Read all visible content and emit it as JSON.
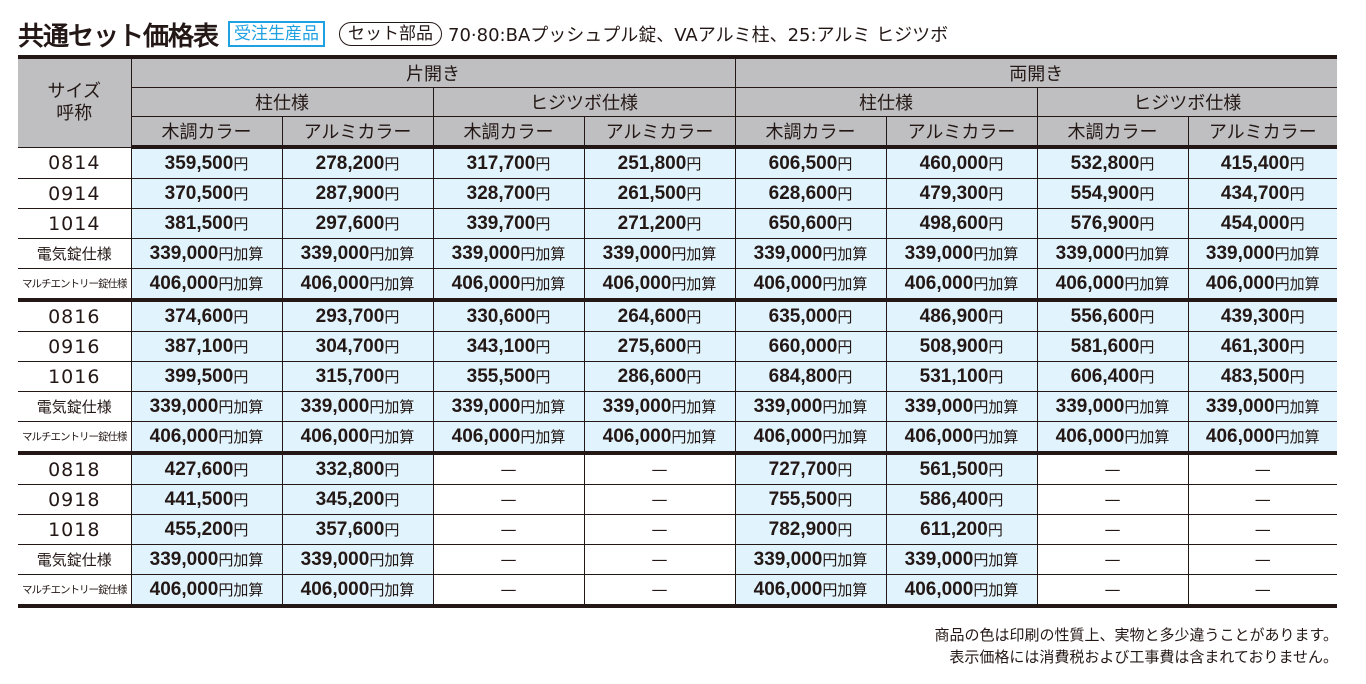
{
  "header": {
    "title": "共通セット価格表",
    "badge": "受注生産品",
    "set_label": "セット部品",
    "description": "70·80:BAプッシュプル錠、VAアルミ柱、25:アルミ ヒジツボ"
  },
  "table": {
    "size_header_line1": "サイズ",
    "size_header_line2": "呼称",
    "groups": [
      {
        "label": "片開き",
        "subgroups": [
          {
            "label": "柱仕様"
          },
          {
            "label": "ヒジツボ仕様"
          }
        ]
      },
      {
        "label": "両開き",
        "subgroups": [
          {
            "label": "柱仕様"
          },
          {
            "label": "ヒジツボ仕様"
          }
        ]
      }
    ],
    "columns": [
      "木調カラー",
      "アルミカラー",
      "木調カラー",
      "アルミカラー",
      "木調カラー",
      "アルミカラー",
      "木調カラー",
      "アルミカラー"
    ],
    "unit": "円",
    "addon_unit": "円加算",
    "dash": "—",
    "rows": [
      {
        "size": "0814",
        "values": [
          "359,500",
          "278,200",
          "317,700",
          "251,800",
          "606,500",
          "460,000",
          "532,800",
          "415,400"
        ]
      },
      {
        "size": "0914",
        "values": [
          "370,500",
          "287,900",
          "328,700",
          "261,500",
          "628,600",
          "479,300",
          "554,900",
          "434,700"
        ]
      },
      {
        "size": "1014",
        "values": [
          "381,500",
          "297,600",
          "339,700",
          "271,200",
          "650,600",
          "498,600",
          "576,900",
          "454,000"
        ]
      },
      {
        "size": "電気錠仕様",
        "addon": true,
        "values": [
          "339,000",
          "339,000",
          "339,000",
          "339,000",
          "339,000",
          "339,000",
          "339,000",
          "339,000"
        ]
      },
      {
        "size": "マルチエントリー錠仕様",
        "addon": true,
        "values": [
          "406,000",
          "406,000",
          "406,000",
          "406,000",
          "406,000",
          "406,000",
          "406,000",
          "406,000"
        ]
      },
      {
        "size": "0816",
        "values": [
          "374,600",
          "293,700",
          "330,600",
          "264,600",
          "635,000",
          "486,900",
          "556,600",
          "439,300"
        ]
      },
      {
        "size": "0916",
        "values": [
          "387,100",
          "304,700",
          "343,100",
          "275,600",
          "660,000",
          "508,900",
          "581,600",
          "461,300"
        ]
      },
      {
        "size": "1016",
        "values": [
          "399,500",
          "315,700",
          "355,500",
          "286,600",
          "684,800",
          "531,100",
          "606,400",
          "483,500"
        ]
      },
      {
        "size": "電気錠仕様",
        "addon": true,
        "values": [
          "339,000",
          "339,000",
          "339,000",
          "339,000",
          "339,000",
          "339,000",
          "339,000",
          "339,000"
        ]
      },
      {
        "size": "マルチエントリー錠仕様",
        "addon": true,
        "values": [
          "406,000",
          "406,000",
          "406,000",
          "406,000",
          "406,000",
          "406,000",
          "406,000",
          "406,000"
        ]
      },
      {
        "size": "0818",
        "values": [
          "427,600",
          "332,800",
          null,
          null,
          "727,700",
          "561,500",
          null,
          null
        ]
      },
      {
        "size": "0918",
        "values": [
          "441,500",
          "345,200",
          null,
          null,
          "755,500",
          "586,400",
          null,
          null
        ]
      },
      {
        "size": "1018",
        "values": [
          "455,200",
          "357,600",
          null,
          null,
          "782,900",
          "611,200",
          null,
          null
        ]
      },
      {
        "size": "電気錠仕様",
        "addon": true,
        "values": [
          "339,000",
          "339,000",
          null,
          null,
          "339,000",
          "339,000",
          null,
          null
        ]
      },
      {
        "size": "マルチエントリー錠仕様",
        "addon": true,
        "values": [
          "406,000",
          "406,000",
          null,
          null,
          "406,000",
          "406,000",
          null,
          null
        ]
      }
    ]
  },
  "notes": {
    "line1": "商品の色は印刷の性質上、実物と多少違うことがあります。",
    "line2": "表示価格には消費税および工事費は含まれておりません。"
  },
  "colors": {
    "header_bg": "#bfbfc1",
    "value_bg": "#e1f3fc",
    "badge": "#1fa0e0",
    "border": "#231815"
  }
}
